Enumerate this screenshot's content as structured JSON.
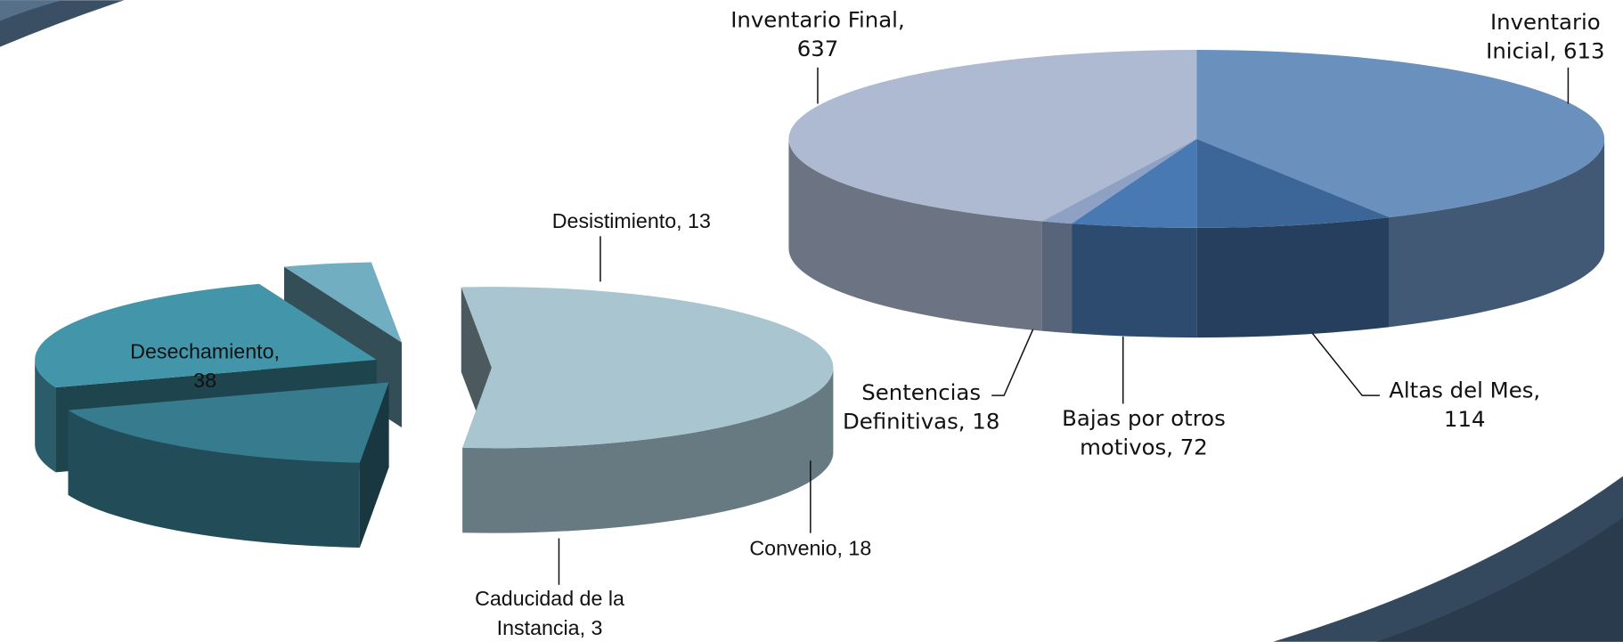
{
  "chart_data": [
    {
      "type": "pie",
      "values": [
        38,
        13,
        18,
        3
      ],
      "value_labels": [
        "Desechamiento, 38",
        "Desistimiento, 13",
        "Convenio, 18",
        "Caducidad de la Instancia, 3"
      ],
      "colors": [
        "#a8c5d0",
        "#367b8e",
        "#4396aa",
        "#71aec1"
      ]
    },
    {
      "type": "pie",
      "values": [
        613,
        114,
        72,
        18,
        637
      ],
      "value_labels": [
        "Inventario Inicial, 613",
        "Altas del Mes, 114",
        "Bajas por otros motivos, 72",
        "Sentencias Definitivas, 18",
        "Inventario Final, 637"
      ],
      "colors": [
        "#6a90bd",
        "#3d6698",
        "#4979b3",
        "#8ea1c4",
        "#aebad2"
      ]
    }
  ]
}
